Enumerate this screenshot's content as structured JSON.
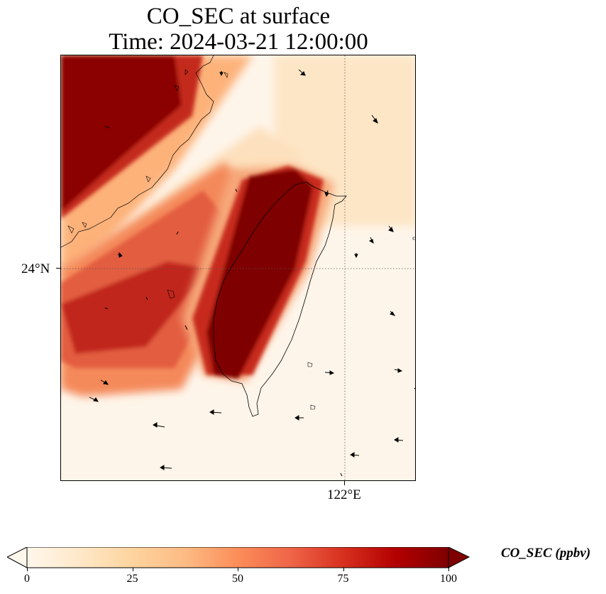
{
  "title": {
    "line1": "CO_SEC at surface",
    "line2": "Time: 2024-03-21 12:00:00"
  },
  "map": {
    "lat_label": "24°N",
    "lon_label": "122°E",
    "gridline_style": "dotted",
    "colormap": "OrRd"
  },
  "colorbar": {
    "label": "CO_SEC (ppbv)",
    "min": 0,
    "max": 100,
    "ticks": [
      "0",
      "25",
      "50",
      "75",
      "100"
    ],
    "extend": "both",
    "colors": [
      "#fff7ec",
      "#fee8c8",
      "#fdd49e",
      "#fdbb84",
      "#fc8d59",
      "#ef6548",
      "#d7301f",
      "#b30000",
      "#7f0000"
    ]
  }
}
